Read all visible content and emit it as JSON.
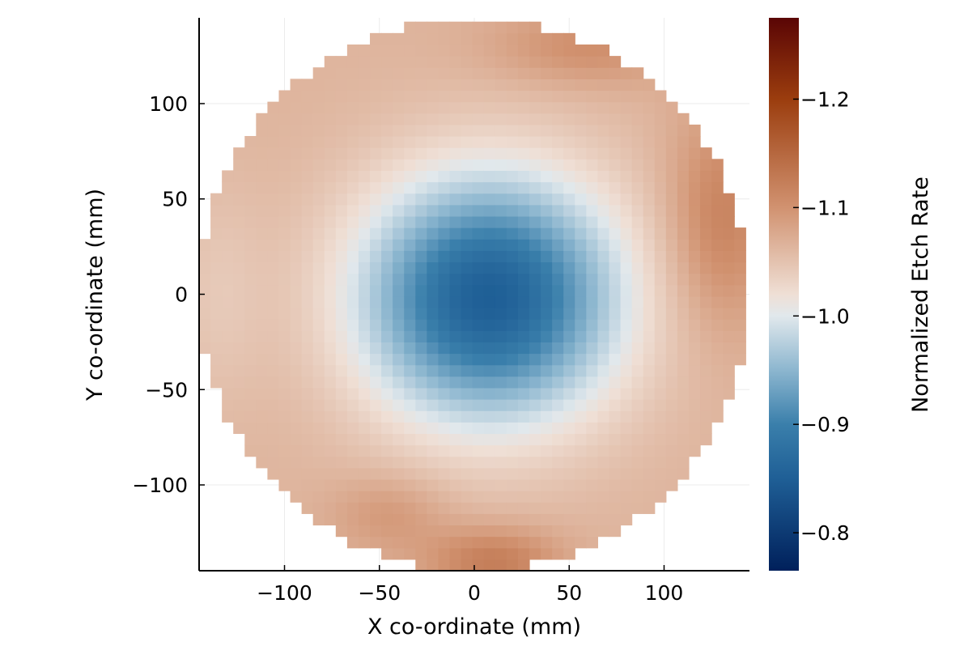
{
  "chart_data": {
    "type": "heatmap",
    "title": "",
    "xlabel": "X co-ordinate (mm)",
    "ylabel": "Y co-ordinate (mm)",
    "xlim": [
      -145,
      145
    ],
    "ylim": [
      -145,
      145
    ],
    "xticks": [
      -100,
      -50,
      0,
      50,
      100
    ],
    "yticks": [
      -100,
      -50,
      0,
      50,
      100
    ],
    "xtick_labels": [
      "−100",
      "−50",
      "0",
      "50",
      "100"
    ],
    "ytick_labels": [
      "−100",
      "−50",
      "0",
      "50",
      "100"
    ],
    "grid": true,
    "wafer_radius_mm": 145,
    "cell_size_mm": 6,
    "colorbar": {
      "label": "Normalized Etch Rate",
      "range": [
        0.765,
        1.275
      ],
      "ticks": [
        0.8,
        0.9,
        1.0,
        1.1,
        1.2
      ],
      "tick_labels": [
        "0.8",
        "0.9",
        "1.0",
        "1.1",
        "1.2"
      ],
      "stops": [
        {
          "value": 0.765,
          "color": "#00205b"
        },
        {
          "value": 0.85,
          "color": "#1f5f96"
        },
        {
          "value": 0.9,
          "color": "#3a7fab"
        },
        {
          "value": 0.95,
          "color": "#8cb6cf"
        },
        {
          "value": 1.0,
          "color": "#e1e8ec"
        },
        {
          "value": 1.02,
          "color": "#efdfd5"
        },
        {
          "value": 1.1,
          "color": "#d19270"
        },
        {
          "value": 1.2,
          "color": "#9b3d0e"
        },
        {
          "value": 1.275,
          "color": "#5a0505"
        }
      ]
    },
    "surface": {
      "description_terms": [
        {
          "type": "const",
          "a": 1.065
        },
        {
          "type": "gauss",
          "cx": 8,
          "cy": -2,
          "sx": 68,
          "sy": 64,
          "a": -0.215
        },
        {
          "type": "gauss",
          "cx": 10,
          "cy": -140,
          "sx": 35,
          "sy": 18,
          "a": 0.06
        },
        {
          "type": "gauss",
          "cx": -45,
          "cy": -115,
          "sx": 30,
          "sy": 20,
          "a": 0.03
        },
        {
          "type": "gauss",
          "cx": 130,
          "cy": 40,
          "sx": 28,
          "sy": 55,
          "a": 0.055
        },
        {
          "type": "gauss",
          "cx": 60,
          "cy": 130,
          "sx": 50,
          "sy": 20,
          "a": 0.04
        },
        {
          "type": "gauss",
          "cx": -135,
          "cy": 0,
          "sx": 25,
          "sy": 60,
          "a": -0.02
        }
      ]
    }
  }
}
